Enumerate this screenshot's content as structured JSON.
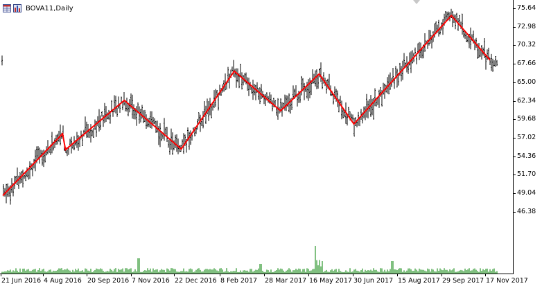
{
  "window": {
    "title": "BOVA11,Daily",
    "icons": [
      "table-icon",
      "chart-icon"
    ]
  },
  "colors": {
    "background": "#ffffff",
    "bars": "#000000",
    "volume": "#008000",
    "zigzag": "#ff0000",
    "axis": "#000000"
  },
  "chart_data": {
    "type": "ohlc",
    "title": "BOVA11,Daily",
    "price_axis": {
      "labels": [
        "75.64",
        "72.98",
        "70.32",
        "67.66",
        "65.00",
        "62.34",
        "59.68",
        "57.02",
        "54.36",
        "51.70",
        "49.04",
        "46.38"
      ],
      "range": [
        45.5,
        76.5
      ]
    },
    "time_axis": {
      "labels": [
        "21 Jun 2016",
        "4 Aug 2016",
        "20 Sep 2016",
        "7 Nov 2016",
        "22 Dec 2016",
        "8 Feb 2017",
        "28 Mar 2017",
        "16 May 2017",
        "30 Jun 2017",
        "15 Aug 2017",
        "29 Sep 2017",
        "17 Nov 2017"
      ]
    },
    "zigzag": {
      "dates": [
        "2016-06-21",
        "2016-08-22",
        "2016-08-25",
        "2016-10-25",
        "2016-12-23",
        "2017-02-16",
        "2017-04-05",
        "2017-05-15",
        "2017-06-20",
        "2017-09-29",
        "2017-11-08"
      ],
      "values": [
        48.7,
        57.6,
        55.3,
        62.4,
        55.4,
        66.6,
        60.9,
        66.2,
        59.0,
        74.6,
        68.2
      ]
    },
    "volume_spikes": {
      "dates": [
        "2017-05-18",
        "2016-11-10"
      ],
      "notes": "relative volume bars along bottom; tallest on 18 May 2017"
    }
  }
}
